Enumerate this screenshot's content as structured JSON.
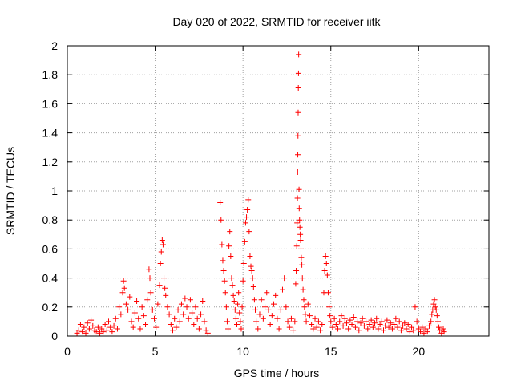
{
  "chart_data": {
    "type": "scatter",
    "title": "Day 020 of 2022, SRMTID for receiver iitk",
    "xlabel": "GPS time / hours",
    "ylabel": "SRMTID / TECUs",
    "xlim": [
      0,
      24
    ],
    "ylim": [
      0,
      2
    ],
    "xticks": [
      0,
      5,
      10,
      15,
      20
    ],
    "xtick_labels": [
      "0",
      "5",
      "10",
      "15",
      "20"
    ],
    "yticks": [
      0,
      0.2,
      0.4,
      0.6,
      0.8,
      1,
      1.2,
      1.4,
      1.6,
      1.8,
      2
    ],
    "ytick_labels": [
      "0",
      "0.2",
      "0.4",
      "0.6",
      "0.8",
      "1",
      "1.2",
      "1.4",
      "1.6",
      "1.8",
      "2"
    ],
    "grid": true,
    "marker": "+",
    "color": "#ff0000",
    "series": [
      {
        "name": "SRMTID",
        "points": [
          [
            0.55,
            0.02
          ],
          [
            0.65,
            0.04
          ],
          [
            0.75,
            0.08
          ],
          [
            0.85,
            0.03
          ],
          [
            0.95,
            0.06
          ],
          [
            1.05,
            0.02
          ],
          [
            1.15,
            0.09
          ],
          [
            1.25,
            0.05
          ],
          [
            1.35,
            0.11
          ],
          [
            1.45,
            0.07
          ],
          [
            1.55,
            0.04
          ],
          [
            1.65,
            0.03
          ],
          [
            1.75,
            0.06
          ],
          [
            1.85,
            0.02
          ],
          [
            1.95,
            0.05
          ],
          [
            2.05,
            0.03
          ],
          [
            2.15,
            0.08
          ],
          [
            2.25,
            0.04
          ],
          [
            2.35,
            0.1
          ],
          [
            2.45,
            0.06
          ],
          [
            2.55,
            0.03
          ],
          [
            2.65,
            0.07
          ],
          [
            2.75,
            0.12
          ],
          [
            2.85,
            0.05
          ],
          [
            2.95,
            0.2
          ],
          [
            3.05,
            0.15
          ],
          [
            3.15,
            0.3
          ],
          [
            3.2,
            0.38
          ],
          [
            3.25,
            0.33
          ],
          [
            3.35,
            0.22
          ],
          [
            3.45,
            0.18
          ],
          [
            3.55,
            0.27
          ],
          [
            3.65,
            0.1
          ],
          [
            3.75,
            0.06
          ],
          [
            3.85,
            0.16
          ],
          [
            3.95,
            0.24
          ],
          [
            4.05,
            0.12
          ],
          [
            4.15,
            0.05
          ],
          [
            4.25,
            0.2
          ],
          [
            4.35,
            0.14
          ],
          [
            4.45,
            0.08
          ],
          [
            4.55,
            0.25
          ],
          [
            4.65,
            0.46
          ],
          [
            4.7,
            0.4
          ],
          [
            4.75,
            0.3
          ],
          [
            4.85,
            0.18
          ],
          [
            4.95,
            0.12
          ],
          [
            5.05,
            0.06
          ],
          [
            5.15,
            0.22
          ],
          [
            5.25,
            0.35
          ],
          [
            5.3,
            0.5
          ],
          [
            5.35,
            0.58
          ],
          [
            5.4,
            0.66
          ],
          [
            5.45,
            0.63
          ],
          [
            5.5,
            0.4
          ],
          [
            5.55,
            0.33
          ],
          [
            5.6,
            0.28
          ],
          [
            5.7,
            0.2
          ],
          [
            5.8,
            0.15
          ],
          [
            5.9,
            0.08
          ],
          [
            6.0,
            0.04
          ],
          [
            6.1,
            0.12
          ],
          [
            6.2,
            0.06
          ],
          [
            6.3,
            0.18
          ],
          [
            6.4,
            0.1
          ],
          [
            6.5,
            0.22
          ],
          [
            6.6,
            0.15
          ],
          [
            6.7,
            0.26
          ],
          [
            6.8,
            0.2
          ],
          [
            6.9,
            0.12
          ],
          [
            7.0,
            0.25
          ],
          [
            7.1,
            0.16
          ],
          [
            7.2,
            0.08
          ],
          [
            7.3,
            0.2
          ],
          [
            7.4,
            0.12
          ],
          [
            7.5,
            0.05
          ],
          [
            7.6,
            0.15
          ],
          [
            7.7,
            0.24
          ],
          [
            7.8,
            0.1
          ],
          [
            7.9,
            0.04
          ],
          [
            8.0,
            0.02
          ],
          [
            8.7,
            0.92
          ],
          [
            8.75,
            0.8
          ],
          [
            8.8,
            0.63
          ],
          [
            8.85,
            0.52
          ],
          [
            8.9,
            0.45
          ],
          [
            8.95,
            0.38
          ],
          [
            9.0,
            0.3
          ],
          [
            9.05,
            0.2
          ],
          [
            9.1,
            0.1
          ],
          [
            9.15,
            0.05
          ],
          [
            9.2,
            0.62
          ],
          [
            9.25,
            0.72
          ],
          [
            9.3,
            0.55
          ],
          [
            9.35,
            0.4
          ],
          [
            9.4,
            0.35
          ],
          [
            9.45,
            0.28
          ],
          [
            9.5,
            0.24
          ],
          [
            9.55,
            0.18
          ],
          [
            9.6,
            0.12
          ],
          [
            9.65,
            0.08
          ],
          [
            9.7,
            0.22
          ],
          [
            9.75,
            0.3
          ],
          [
            9.8,
            0.16
          ],
          [
            9.85,
            0.1
          ],
          [
            9.9,
            0.05
          ],
          [
            9.95,
            0.2
          ],
          [
            10.0,
            0.38
          ],
          [
            10.05,
            0.5
          ],
          [
            10.1,
            0.65
          ],
          [
            10.15,
            0.78
          ],
          [
            10.2,
            0.82
          ],
          [
            10.25,
            0.87
          ],
          [
            10.3,
            0.94
          ],
          [
            10.35,
            0.72
          ],
          [
            10.4,
            0.55
          ],
          [
            10.45,
            0.48
          ],
          [
            10.5,
            0.45
          ],
          [
            10.55,
            0.4
          ],
          [
            10.6,
            0.34
          ],
          [
            10.65,
            0.25
          ],
          [
            10.7,
            0.18
          ],
          [
            10.75,
            0.1
          ],
          [
            10.85,
            0.05
          ],
          [
            10.95,
            0.15
          ],
          [
            11.05,
            0.25
          ],
          [
            11.15,
            0.12
          ],
          [
            11.25,
            0.2
          ],
          [
            11.35,
            0.3
          ],
          [
            11.45,
            0.18
          ],
          [
            11.55,
            0.08
          ],
          [
            11.65,
            0.14
          ],
          [
            11.75,
            0.22
          ],
          [
            11.85,
            0.28
          ],
          [
            11.95,
            0.12
          ],
          [
            12.05,
            0.05
          ],
          [
            12.15,
            0.18
          ],
          [
            12.25,
            0.32
          ],
          [
            12.35,
            0.4
          ],
          [
            12.45,
            0.2
          ],
          [
            12.55,
            0.1
          ],
          [
            12.65,
            0.06
          ],
          [
            12.75,
            0.12
          ],
          [
            12.85,
            0.04
          ],
          [
            12.95,
            0.1
          ],
          [
            13.0,
            0.36
          ],
          [
            13.03,
            0.45
          ],
          [
            13.06,
            0.62
          ],
          [
            13.08,
            0.78
          ],
          [
            13.1,
            0.95
          ],
          [
            13.11,
            1.13
          ],
          [
            13.12,
            1.25
          ],
          [
            13.13,
            1.38
          ],
          [
            13.14,
            1.54
          ],
          [
            13.15,
            1.71
          ],
          [
            13.16,
            1.81
          ],
          [
            13.17,
            1.94
          ],
          [
            13.19,
            1.01
          ],
          [
            13.2,
            0.88
          ],
          [
            13.22,
            0.8
          ],
          [
            13.24,
            0.75
          ],
          [
            13.26,
            0.7
          ],
          [
            13.28,
            0.66
          ],
          [
            13.3,
            0.6
          ],
          [
            13.32,
            0.54
          ],
          [
            13.35,
            0.49
          ],
          [
            13.38,
            0.4
          ],
          [
            13.42,
            0.32
          ],
          [
            13.46,
            0.25
          ],
          [
            13.5,
            0.2
          ],
          [
            13.55,
            0.15
          ],
          [
            13.6,
            0.1
          ],
          [
            13.7,
            0.22
          ],
          [
            13.8,
            0.14
          ],
          [
            13.9,
            0.08
          ],
          [
            14.0,
            0.05
          ],
          [
            14.1,
            0.12
          ],
          [
            14.2,
            0.06
          ],
          [
            14.3,
            0.1
          ],
          [
            14.4,
            0.04
          ],
          [
            14.5,
            0.08
          ],
          [
            14.6,
            0.3
          ],
          [
            14.65,
            0.45
          ],
          [
            14.7,
            0.55
          ],
          [
            14.75,
            0.5
          ],
          [
            14.8,
            0.42
          ],
          [
            14.85,
            0.3
          ],
          [
            14.9,
            0.2
          ],
          [
            14.95,
            0.14
          ],
          [
            15.0,
            0.1
          ],
          [
            15.1,
            0.06
          ],
          [
            15.2,
            0.12
          ],
          [
            15.3,
            0.08
          ],
          [
            15.4,
            0.05
          ],
          [
            15.5,
            0.1
          ],
          [
            15.6,
            0.14
          ],
          [
            15.7,
            0.07
          ],
          [
            15.8,
            0.12
          ],
          [
            15.9,
            0.09
          ],
          [
            16.0,
            0.05
          ],
          [
            16.1,
            0.11
          ],
          [
            16.2,
            0.08
          ],
          [
            16.3,
            0.13
          ],
          [
            16.4,
            0.06
          ],
          [
            16.5,
            0.1
          ],
          [
            16.6,
            0.04
          ],
          [
            16.7,
            0.09
          ],
          [
            16.8,
            0.12
          ],
          [
            16.9,
            0.07
          ],
          [
            17.0,
            0.1
          ],
          [
            17.1,
            0.05
          ],
          [
            17.2,
            0.08
          ],
          [
            17.3,
            0.11
          ],
          [
            17.4,
            0.06
          ],
          [
            17.5,
            0.09
          ],
          [
            17.6,
            0.12
          ],
          [
            17.7,
            0.05
          ],
          [
            17.8,
            0.08
          ],
          [
            17.9,
            0.1
          ],
          [
            18.0,
            0.04
          ],
          [
            18.1,
            0.07
          ],
          [
            18.2,
            0.11
          ],
          [
            18.3,
            0.06
          ],
          [
            18.4,
            0.09
          ],
          [
            18.5,
            0.05
          ],
          [
            18.6,
            0.08
          ],
          [
            18.7,
            0.12
          ],
          [
            18.8,
            0.06
          ],
          [
            18.9,
            0.1
          ],
          [
            19.0,
            0.04
          ],
          [
            19.1,
            0.07
          ],
          [
            19.2,
            0.09
          ],
          [
            19.3,
            0.05
          ],
          [
            19.4,
            0.08
          ],
          [
            19.5,
            0.03
          ],
          [
            19.6,
            0.06
          ],
          [
            19.7,
            0.04
          ],
          [
            19.8,
            0.2
          ],
          [
            19.9,
            0.1
          ],
          [
            20.0,
            0.05
          ],
          [
            20.1,
            0.03
          ],
          [
            20.2,
            0.06
          ],
          [
            20.3,
            0.02
          ],
          [
            20.4,
            0.05
          ],
          [
            20.5,
            0.03
          ],
          [
            20.6,
            0.07
          ],
          [
            20.7,
            0.1
          ],
          [
            20.75,
            0.15
          ],
          [
            20.8,
            0.18
          ],
          [
            20.85,
            0.22
          ],
          [
            20.9,
            0.25
          ],
          [
            20.95,
            0.2
          ],
          [
            21.0,
            0.18
          ],
          [
            21.05,
            0.14
          ],
          [
            21.1,
            0.1
          ],
          [
            21.15,
            0.06
          ],
          [
            21.2,
            0.04
          ],
          [
            21.3,
            0.02
          ],
          [
            21.4,
            0.05
          ],
          [
            21.45,
            0.03
          ]
        ]
      }
    ]
  }
}
